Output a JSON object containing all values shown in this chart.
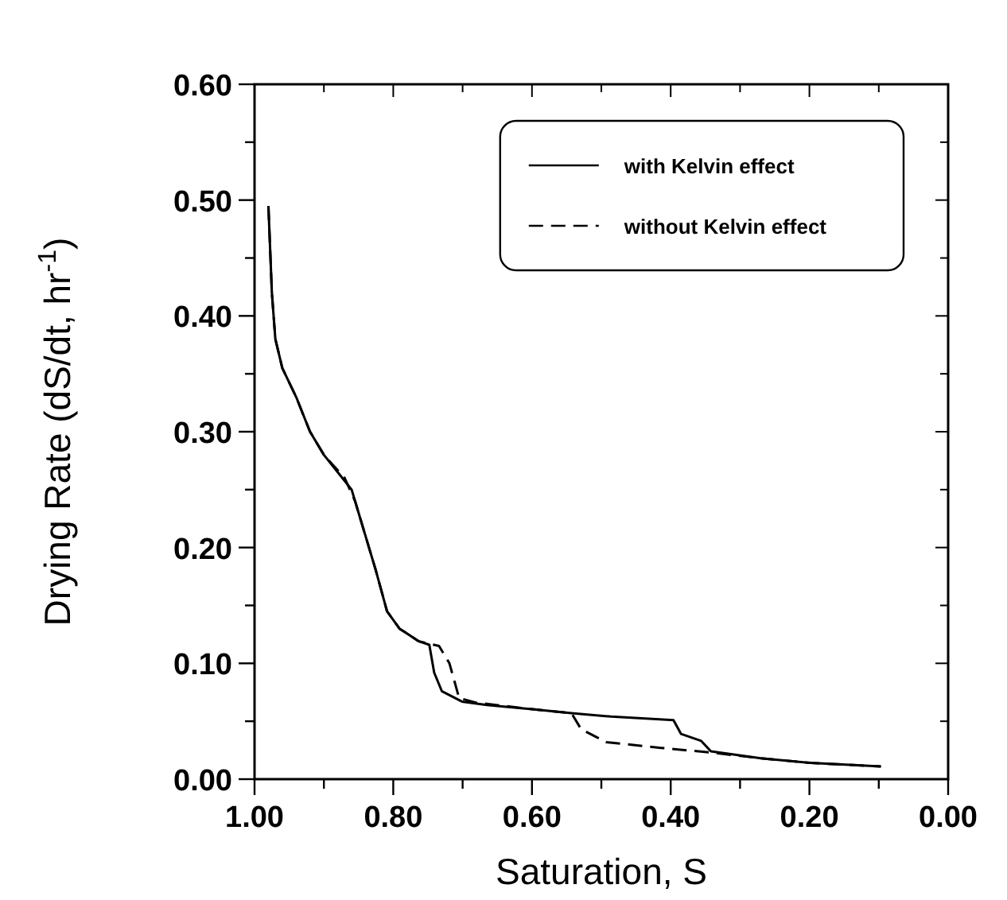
{
  "chart_data": {
    "type": "line",
    "xlabel": "Saturation, S",
    "ylabel": "Drying Rate (dS/dt, hr$^{-1}$)",
    "xlim": [
      1,
      0
    ],
    "ylim": [
      0,
      0.6
    ],
    "xticks": [
      {
        "value": 1,
        "label": "1.00"
      },
      {
        "value": 0.9,
        "label": null
      },
      {
        "value": 0.8,
        "label": "0.80"
      },
      {
        "value": 0.7,
        "label": null
      },
      {
        "value": 0.6,
        "label": "0.60"
      },
      {
        "value": 0.5,
        "label": null
      },
      {
        "value": 0.4,
        "label": "0.40"
      },
      {
        "value": 0.3,
        "label": null
      },
      {
        "value": 0.2,
        "label": "0.20"
      },
      {
        "value": 0.1,
        "label": null
      },
      {
        "value": 0,
        "label": "0.00"
      }
    ],
    "yticks": [
      {
        "value": 0,
        "label": "0.00"
      },
      {
        "value": 0.05,
        "label": null
      },
      {
        "value": 0.1,
        "label": "0.10"
      },
      {
        "value": 0.15,
        "label": null
      },
      {
        "value": 0.2,
        "label": "0.20"
      },
      {
        "value": 0.25,
        "label": null
      },
      {
        "value": 0.3,
        "label": "0.30"
      },
      {
        "value": 0.35,
        "label": null
      },
      {
        "value": 0.4,
        "label": "0.40"
      },
      {
        "value": 0.45,
        "label": null
      },
      {
        "value": 0.5,
        "label": "0.50"
      },
      {
        "value": 0.55,
        "label": null
      },
      {
        "value": 0.6,
        "label": "0.60"
      }
    ],
    "grid": false,
    "legend": "top right",
    "marker": "none",
    "series": [
      {
        "name": "with Kelvin effect",
        "color": "#000000",
        "line_style": "solid",
        "x": [
          0.98,
          0.975,
          0.97,
          0.96,
          0.94,
          0.92,
          0.9,
          0.88,
          0.86,
          0.85,
          0.84,
          0.825,
          0.809,
          0.791,
          0.763,
          0.748,
          0.741,
          0.73,
          0.701,
          0.665,
          0.594,
          0.543,
          0.486,
          0.396,
          0.385,
          0.356,
          0.342,
          0.27,
          0.198,
          0.097
        ],
        "values": [
          0.495,
          0.42,
          0.38,
          0.355,
          0.33,
          0.3,
          0.28,
          0.265,
          0.25,
          0.23,
          0.21,
          0.18,
          0.145,
          0.13,
          0.119,
          0.116,
          0.092,
          0.076,
          0.067,
          0.064,
          0.06,
          0.057,
          0.054,
          0.051,
          0.039,
          0.033,
          0.024,
          0.018,
          0.014,
          0.011
        ]
      },
      {
        "name": "without Kelvin effect",
        "color": "#000000",
        "line_style": "dashed",
        "x": [
          0.98,
          0.975,
          0.97,
          0.96,
          0.94,
          0.92,
          0.9,
          0.87,
          0.855,
          0.84,
          0.825,
          0.809,
          0.791,
          0.763,
          0.734,
          0.719,
          0.705,
          0.68,
          0.594,
          0.543,
          0.529,
          0.493,
          0.414,
          0.342,
          0.27,
          0.198,
          0.097
        ],
        "values": [
          0.495,
          0.42,
          0.38,
          0.355,
          0.33,
          0.3,
          0.28,
          0.26,
          0.24,
          0.21,
          0.18,
          0.145,
          0.13,
          0.119,
          0.115,
          0.1,
          0.07,
          0.066,
          0.06,
          0.057,
          0.043,
          0.032,
          0.027,
          0.023,
          0.018,
          0.014,
          0.011
        ]
      }
    ]
  }
}
